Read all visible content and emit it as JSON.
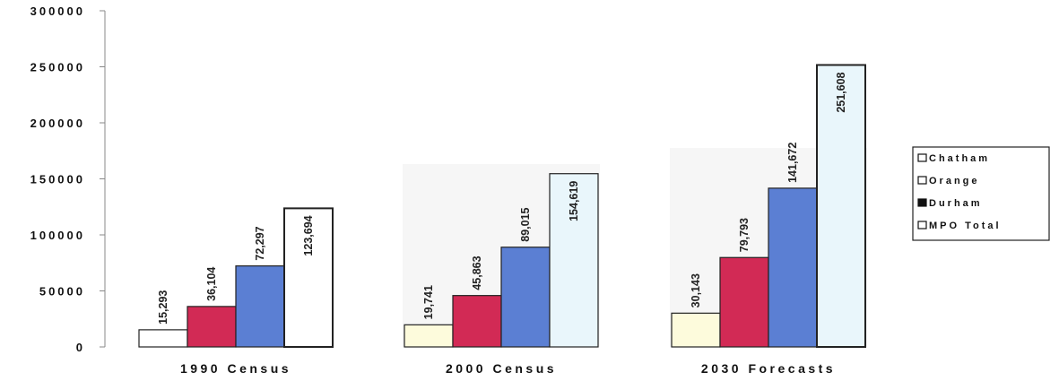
{
  "chart_data": {
    "type": "bar",
    "categories": [
      "1990 Census",
      "2000 Census",
      "2030 Forecasts"
    ],
    "series": [
      {
        "name": "Chatham",
        "values": [
          15293,
          19741,
          30143
        ],
        "color": "#fdfbdc"
      },
      {
        "name": "Orange",
        "values": [
          36104,
          45863,
          79793
        ],
        "color": "#d22a55"
      },
      {
        "name": "Durham",
        "values": [
          72297,
          89015,
          141672
        ],
        "color": "#5b7fd3"
      },
      {
        "name": "MPO Total",
        "values": [
          123694,
          154619,
          251608
        ],
        "color": "#e9f6fb"
      }
    ],
    "data_labels": [
      [
        "15,293",
        "36,104",
        "72,297",
        "123,694"
      ],
      [
        "19,741",
        "45,863",
        "89,015",
        "154,619"
      ],
      [
        "30,143",
        "79,793",
        "141,672",
        "251,608"
      ]
    ],
    "ylim": [
      0,
      300000
    ],
    "yticks": [
      "0",
      "50000",
      "100000",
      "150000",
      "200000",
      "250000",
      "300000"
    ],
    "legend_position": "right",
    "grid": false
  }
}
